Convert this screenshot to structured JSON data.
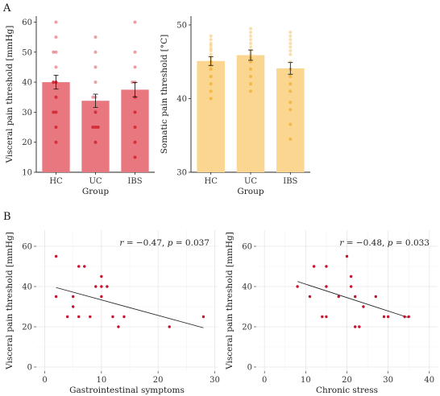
{
  "panels": {
    "a": "A",
    "b": "B"
  },
  "chart_data": [
    {
      "type": "bar",
      "categories": [
        "HC",
        "UC",
        "IBS"
      ],
      "values": [
        40.0,
        33.8,
        37.5
      ],
      "errors": [
        2.3,
        2.2,
        2.4
      ],
      "ylim": [
        10,
        62
      ],
      "yticks": [
        10,
        20,
        30,
        40,
        50,
        60
      ],
      "ylabel": "Visceral pain threshold [mmHg]",
      "xlabel": "Group",
      "color": "#e8777f",
      "point_color": "#d22a36",
      "points": {
        "HC": [
          60,
          55,
          50,
          50,
          45,
          40,
          40,
          35,
          30,
          30,
          25,
          20
        ],
        "UC": [
          55,
          50,
          45,
          40,
          35,
          35,
          30,
          25,
          25,
          25,
          20
        ],
        "IBS": [
          60,
          50,
          45,
          40,
          40,
          35,
          30,
          25,
          20,
          15
        ]
      }
    },
    {
      "type": "bar",
      "categories": [
        "HC",
        "UC",
        "IBS"
      ],
      "values": [
        45.1,
        45.9,
        44.1
      ],
      "errors": [
        0.6,
        0.7,
        0.8
      ],
      "ylim": [
        30,
        51.2
      ],
      "yticks": [
        30,
        40,
        50
      ],
      "ylabel": "Somatic pain threshold [°C]",
      "xlabel": "Group",
      "color": "#fbd690",
      "point_color": "#f2b645",
      "points": {
        "HC": [
          48.5,
          48.0,
          47.5,
          47.2,
          46.8,
          46.5,
          46.0,
          45.5,
          45.0,
          44.5,
          44.0,
          43.0,
          42.0,
          41.0,
          40.0
        ],
        "UC": [
          49.5,
          49.0,
          48.5,
          48.0,
          47.5,
          47.0,
          46.5,
          46.0,
          45.5,
          45.0,
          44.0,
          43.0,
          42.0,
          41.0
        ],
        "IBS": [
          49.0,
          48.5,
          48.0,
          47.5,
          47.0,
          46.5,
          46.0,
          45.0,
          44.0,
          43.0,
          42.0,
          41.0,
          39.5,
          38.5,
          36.5,
          34.5
        ]
      }
    },
    {
      "type": "scatter",
      "xlabel": "Gastrointestinal symptoms",
      "ylabel": "Visceral pain threshold [mmHg]",
      "xlim": [
        -1.5,
        30.5
      ],
      "xticks": [
        0,
        10,
        20,
        30
      ],
      "ylim": [
        -2,
        68
      ],
      "yticks": [
        0,
        20,
        40,
        60
      ],
      "r_label": "r",
      "r_value": " = −0.47, ",
      "p_label": "p",
      "p_value": " = 0.037",
      "points": [
        [
          2,
          55
        ],
        [
          2,
          35
        ],
        [
          4,
          25
        ],
        [
          5,
          35
        ],
        [
          5,
          30
        ],
        [
          6,
          50
        ],
        [
          6,
          25
        ],
        [
          7,
          50
        ],
        [
          8,
          25
        ],
        [
          9,
          40
        ],
        [
          10,
          40
        ],
        [
          10,
          35
        ],
        [
          10,
          45
        ],
        [
          11,
          40
        ],
        [
          12,
          25
        ],
        [
          13,
          20
        ],
        [
          14,
          25
        ],
        [
          22,
          20
        ],
        [
          28,
          25
        ]
      ],
      "fit": [
        [
          2,
          39.5
        ],
        [
          28,
          19.5
        ]
      ],
      "point_color": "#c8102e"
    },
    {
      "type": "scatter",
      "xlabel": "Chronic stress",
      "ylabel": "Visceral pain threshold [mmHg]",
      "xlim": [
        -2,
        42
      ],
      "xticks": [
        0,
        10,
        20,
        30,
        40
      ],
      "ylim": [
        -2,
        68
      ],
      "yticks": [
        0,
        20,
        40,
        60
      ],
      "r_label": "r",
      "r_value": " = −0.48, ",
      "p_label": "p",
      "p_value": " = 0.033",
      "points": [
        [
          8,
          40
        ],
        [
          11,
          35
        ],
        [
          12,
          50
        ],
        [
          14,
          25
        ],
        [
          15,
          25
        ],
        [
          15,
          50
        ],
        [
          15,
          40
        ],
        [
          18,
          35
        ],
        [
          20,
          55
        ],
        [
          21,
          45
        ],
        [
          21,
          40
        ],
        [
          22,
          20
        ],
        [
          22,
          35
        ],
        [
          23,
          20
        ],
        [
          24,
          30
        ],
        [
          27,
          35
        ],
        [
          29,
          25
        ],
        [
          30,
          25
        ],
        [
          34,
          25
        ],
        [
          35,
          25
        ]
      ],
      "fit": [
        [
          8,
          42.5
        ],
        [
          35,
          24.5
        ]
      ],
      "point_color": "#c8102e"
    }
  ]
}
